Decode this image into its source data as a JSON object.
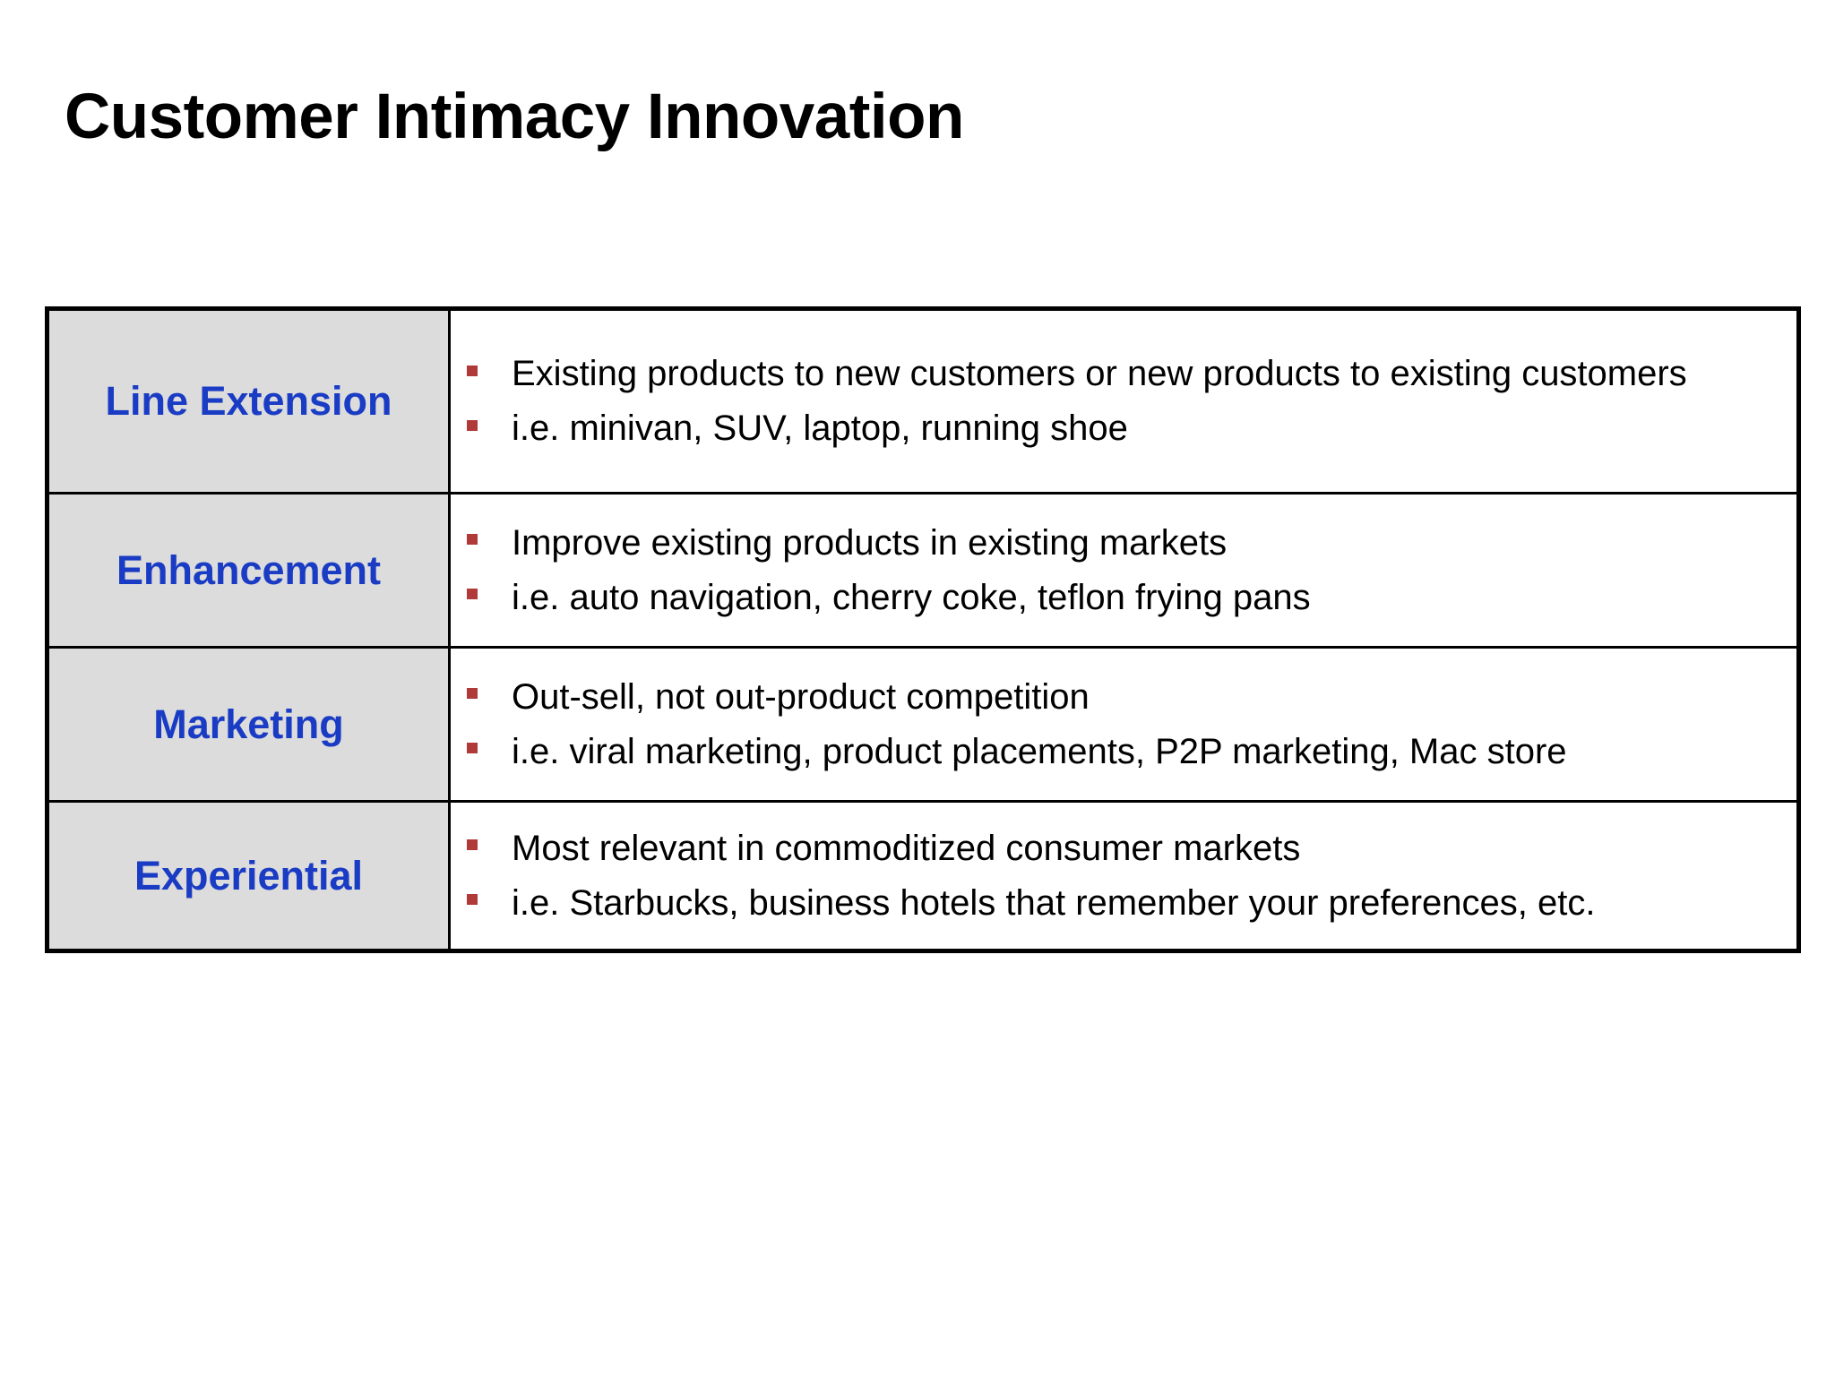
{
  "slide": {
    "title": "Customer Intimacy Innovation"
  },
  "colors": {
    "label_text": "#1a3cc4",
    "label_bg": "#dcdcdc",
    "bullet": "#b03a3a"
  },
  "table": {
    "rows": [
      {
        "label": "Line Extension",
        "bullets": [
          "Existing products to new customers or new products to existing customers",
          "i.e. minivan, SUV, laptop, running shoe"
        ]
      },
      {
        "label": "Enhancement",
        "bullets": [
          "Improve existing products in existing markets",
          "i.e. auto navigation, cherry coke, teflon frying pans"
        ]
      },
      {
        "label": "Marketing",
        "bullets": [
          "Out-sell, not out-product competition",
          "i.e. viral marketing, product placements, P2P marketing, Mac store"
        ]
      },
      {
        "label": "Experiential",
        "bullets": [
          "Most relevant in commoditized consumer markets",
          "i.e. Starbucks, business hotels that remember your preferences, etc."
        ]
      }
    ]
  }
}
